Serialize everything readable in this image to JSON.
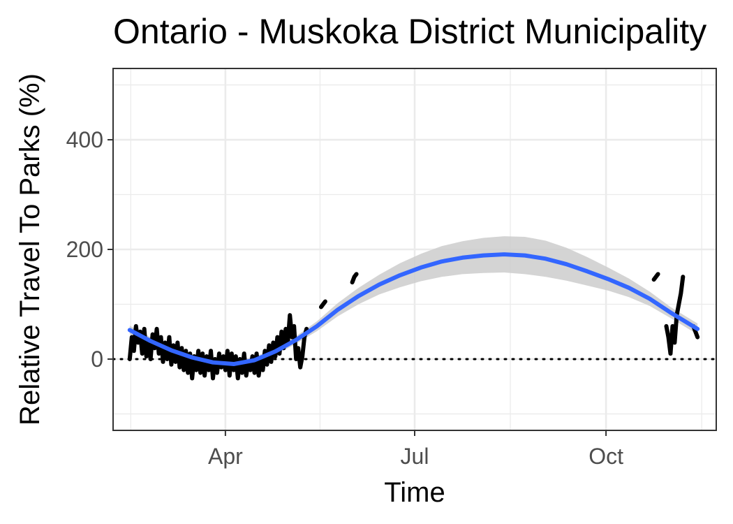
{
  "chart_data": {
    "type": "line",
    "title": "Ontario - Muskoka District Municipality",
    "xlabel": "Time",
    "ylabel": "Relative Travel To Parks (%)",
    "x_ticks": [
      "Apr",
      "Jul",
      "Oct"
    ],
    "y_ticks": [
      0,
      200,
      400
    ],
    "ylim": [
      -130,
      530
    ],
    "xlim": [
      "2020-02-07",
      "2020-11-23"
    ],
    "grid": true,
    "legend": "none",
    "reference_line": {
      "y": 0,
      "style": "dotted"
    },
    "colors": {
      "data": "#000000",
      "trend": "#3366ff",
      "ribbon": "#cccccc",
      "grid": "#ebebeb",
      "panel_border": "#333333"
    },
    "series": [
      {
        "values": [
          [
            "2020-02-15",
            0
          ],
          [
            "2020-02-16",
            40
          ],
          [
            "2020-02-17",
            15
          ],
          [
            "2020-02-18",
            60
          ],
          [
            "2020-02-19",
            30
          ],
          [
            "2020-02-20",
            50
          ],
          [
            "2020-02-21",
            10
          ],
          [
            "2020-02-22",
            55
          ],
          [
            "2020-02-23",
            5
          ],
          [
            "2020-02-24",
            35
          ],
          [
            "2020-02-25",
            0
          ],
          [
            "2020-02-26",
            45
          ],
          [
            "2020-02-27",
            20
          ],
          [
            "2020-02-28",
            55
          ],
          [
            "2020-02-29",
            10
          ],
          [
            "2020-03-01",
            40
          ],
          [
            "2020-03-02",
            -5
          ],
          [
            "2020-03-03",
            30
          ],
          [
            "2020-03-04",
            0
          ],
          [
            "2020-03-05",
            40
          ],
          [
            "2020-03-06",
            -10
          ],
          [
            "2020-03-07",
            25
          ],
          [
            "2020-03-08",
            -5
          ],
          [
            "2020-03-09",
            30
          ],
          [
            "2020-03-10",
            -15
          ],
          [
            "2020-03-11",
            20
          ],
          [
            "2020-03-12",
            -20
          ],
          [
            "2020-03-13",
            15
          ],
          [
            "2020-03-14",
            -25
          ],
          [
            "2020-03-15",
            10
          ],
          [
            "2020-03-16",
            -35
          ],
          [
            "2020-03-17",
            5
          ],
          [
            "2020-03-18",
            -20
          ],
          [
            "2020-03-19",
            15
          ],
          [
            "2020-03-20",
            -25
          ],
          [
            "2020-03-21",
            10
          ],
          [
            "2020-03-22",
            -30
          ],
          [
            "2020-03-23",
            5
          ],
          [
            "2020-03-24",
            -20
          ],
          [
            "2020-03-25",
            15
          ],
          [
            "2020-03-26",
            -35
          ],
          [
            "2020-03-27",
            0
          ],
          [
            "2020-03-28",
            -25
          ],
          [
            "2020-03-29",
            10
          ],
          [
            "2020-03-30",
            -15
          ],
          [
            "2020-03-31",
            5
          ],
          [
            "2020-04-01",
            -20
          ],
          [
            "2020-04-02",
            15
          ],
          [
            "2020-04-03",
            -30
          ],
          [
            "2020-04-04",
            10
          ],
          [
            "2020-04-05",
            -20
          ],
          [
            "2020-04-06",
            5
          ],
          [
            "2020-04-07",
            -35
          ],
          [
            "2020-04-08",
            0
          ],
          [
            "2020-04-09",
            -25
          ],
          [
            "2020-04-10",
            10
          ],
          [
            "2020-04-11",
            -30
          ],
          [
            "2020-04-12",
            -5
          ],
          [
            "2020-04-13",
            -20
          ],
          [
            "2020-04-14",
            5
          ],
          [
            "2020-04-15",
            -25
          ],
          [
            "2020-04-16",
            10
          ],
          [
            "2020-04-17",
            -30
          ],
          [
            "2020-04-18",
            0
          ],
          [
            "2020-04-19",
            -20
          ],
          [
            "2020-04-20",
            15
          ],
          [
            "2020-04-21",
            -10
          ],
          [
            "2020-04-22",
            25
          ],
          [
            "2020-04-23",
            -5
          ],
          [
            "2020-04-24",
            30
          ],
          [
            "2020-04-25",
            5
          ],
          [
            "2020-04-26",
            40
          ],
          [
            "2020-04-27",
            10
          ],
          [
            "2020-04-28",
            50
          ],
          [
            "2020-04-29",
            20
          ],
          [
            "2020-04-30",
            55
          ],
          [
            "2020-05-01",
            30
          ],
          [
            "2020-05-02",
            80
          ],
          [
            "2020-05-03",
            40
          ],
          [
            "2020-05-04",
            60
          ],
          [
            "2020-05-05",
            0
          ],
          [
            "2020-05-06",
            20
          ],
          [
            "2020-05-07",
            -15
          ],
          [
            "2020-05-08",
            5
          ],
          [
            "2020-05-09",
            40
          ],
          [
            "2020-05-10",
            55
          ]
        ]
      },
      {
        "values": [
          [
            "2020-05-17",
            95
          ],
          [
            "2020-05-18",
            100
          ],
          [
            "2020-05-19",
            105
          ]
        ]
      },
      {
        "values": [
          [
            "2020-06-01",
            140
          ],
          [
            "2020-06-02",
            150
          ],
          [
            "2020-06-03",
            155
          ]
        ]
      },
      {
        "values": [
          [
            "2020-10-24",
            145
          ],
          [
            "2020-10-25",
            150
          ],
          [
            "2020-10-26",
            155
          ]
        ]
      },
      {
        "values": [
          [
            "2020-10-30",
            60
          ],
          [
            "2020-10-31",
            40
          ],
          [
            "2020-11-01",
            10
          ],
          [
            "2020-11-02",
            60
          ],
          [
            "2020-11-03",
            30
          ],
          [
            "2020-11-04",
            80
          ],
          [
            "2020-11-05",
            100
          ],
          [
            "2020-11-06",
            120
          ],
          [
            "2020-11-07",
            150
          ]
        ]
      },
      {
        "values": [
          [
            "2020-11-12",
            60
          ],
          [
            "2020-11-13",
            50
          ],
          [
            "2020-11-14",
            40
          ]
        ]
      }
    ],
    "trend": {
      "values": [
        [
          "2020-02-15",
          53
        ],
        [
          "2020-02-25",
          33
        ],
        [
          "2020-03-06",
          16
        ],
        [
          "2020-03-16",
          3
        ],
        [
          "2020-03-26",
          -6
        ],
        [
          "2020-04-05",
          -9
        ],
        [
          "2020-04-15",
          -2
        ],
        [
          "2020-04-25",
          14
        ],
        [
          "2020-05-05",
          35
        ],
        [
          "2020-05-15",
          60
        ],
        [
          "2020-05-25",
          90
        ],
        [
          "2020-06-04",
          115
        ],
        [
          "2020-06-14",
          136
        ],
        [
          "2020-06-24",
          153
        ],
        [
          "2020-07-04",
          167
        ],
        [
          "2020-07-14",
          178
        ],
        [
          "2020-07-24",
          185
        ],
        [
          "2020-08-03",
          189
        ],
        [
          "2020-08-13",
          191
        ],
        [
          "2020-08-23",
          189
        ],
        [
          "2020-09-02",
          183
        ],
        [
          "2020-09-12",
          173
        ],
        [
          "2020-09-22",
          160
        ],
        [
          "2020-10-02",
          146
        ],
        [
          "2020-10-12",
          130
        ],
        [
          "2020-10-22",
          110
        ],
        [
          "2020-11-01",
          85
        ],
        [
          "2020-11-14",
          55
        ]
      ],
      "ci_halfwidth": [
        8,
        7,
        6,
        6,
        6,
        6,
        6,
        6,
        7,
        9,
        12,
        15,
        18,
        22,
        25,
        28,
        30,
        32,
        33,
        34,
        33,
        30,
        26,
        21,
        17,
        13,
        10,
        10
      ]
    }
  }
}
